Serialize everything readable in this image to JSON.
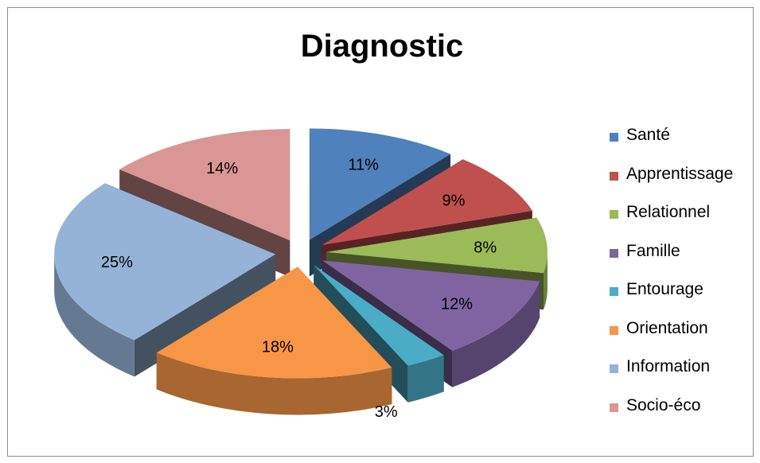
{
  "chart_data": {
    "type": "pie",
    "title": "Diagnostic",
    "categories": [
      "Santé",
      "Apprentissage",
      "Relationnel",
      "Famille",
      "Entourage",
      "Orientation",
      "Information",
      "Socio-éco"
    ],
    "values": [
      11,
      9,
      8,
      12,
      3,
      18,
      25,
      14
    ],
    "labels": [
      "11%",
      "9%",
      "8%",
      "12%",
      "3%",
      "18%",
      "25%",
      "14%"
    ],
    "unit": "%",
    "exploded": true,
    "three_d": true,
    "legend_position": "right",
    "colors": [
      "#4f81bd",
      "#c0504d",
      "#9bbb59",
      "#8064a2",
      "#4bacc6",
      "#f79646",
      "#95b3d7",
      "#d99694"
    ]
  }
}
